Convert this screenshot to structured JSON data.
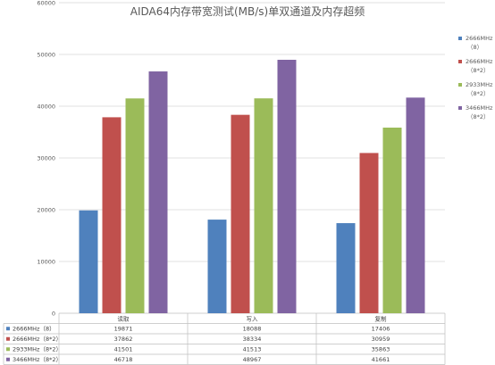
{
  "chart_data": {
    "type": "bar",
    "title": "AIDA64内存带宽测试(MB/s)单双通道及内存超频",
    "xlabel": "",
    "ylabel": "",
    "ylim": [
      0,
      60000
    ],
    "yticks": [
      "0",
      "10000",
      "20000",
      "30000",
      "40000",
      "50000",
      "60000"
    ],
    "grid": true,
    "legend_position": "right",
    "categories": [
      "读取",
      "写入",
      "复制"
    ],
    "series": [
      {
        "name": "2666MHz（8）",
        "name_lines": [
          "2666MHz",
          "（8）"
        ],
        "color": "#4f81bd",
        "values": [
          19871,
          18088,
          17406
        ]
      },
      {
        "name": "2666MHz（8*2）",
        "name_lines": [
          "2666MHz",
          "（8*2）"
        ],
        "color": "#c0504d",
        "values": [
          37862,
          38334,
          30959
        ]
      },
      {
        "name": "2933MHz（8*2）",
        "name_lines": [
          "2933MHz",
          "（8*2）"
        ],
        "color": "#9bbb59",
        "values": [
          41501,
          41513,
          35863
        ]
      },
      {
        "name": "3466MHz（8*2）",
        "name_lines": [
          "3466MHz",
          "（8*2）"
        ],
        "color": "#8064a2",
        "values": [
          46718,
          48967,
          41661
        ]
      }
    ],
    "table_shown": true
  }
}
